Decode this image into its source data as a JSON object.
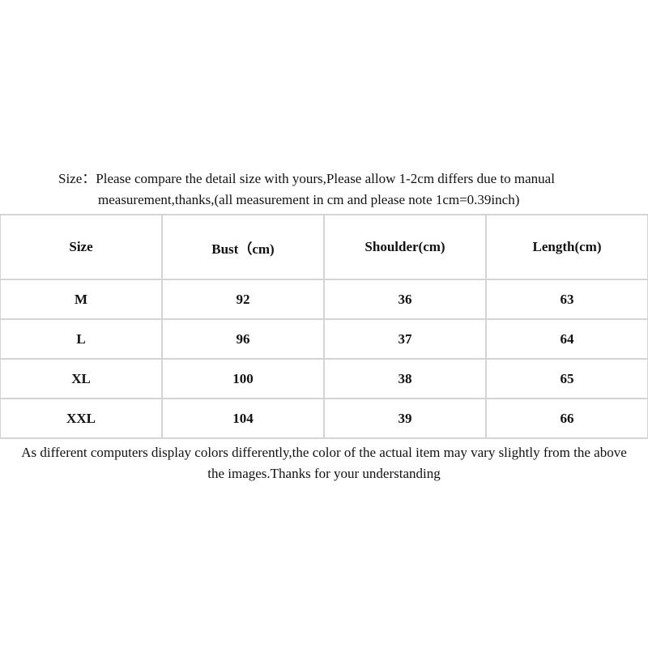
{
  "intro": {
    "line1": "Size：Please compare the detail size with yours,Please allow 1-2cm differs due to manual",
    "line2": "measurement,thanks,(all measurement in cm and please note 1cm=0.39inch)"
  },
  "table": {
    "headers": [
      "Size",
      "Bust（cm)",
      "Shoulder(cm)",
      "Length(cm)"
    ],
    "rows": [
      [
        "M",
        "92",
        "36",
        "63"
      ],
      [
        "L",
        "96",
        "37",
        "64"
      ],
      [
        "XL",
        "100",
        "38",
        "65"
      ],
      [
        "XXL",
        "104",
        "39",
        "66"
      ]
    ]
  },
  "note": {
    "line1": "As different computers display colors differently,the color of the actual item may vary slightly from the above",
    "line2": "the images.Thanks for your understanding"
  }
}
